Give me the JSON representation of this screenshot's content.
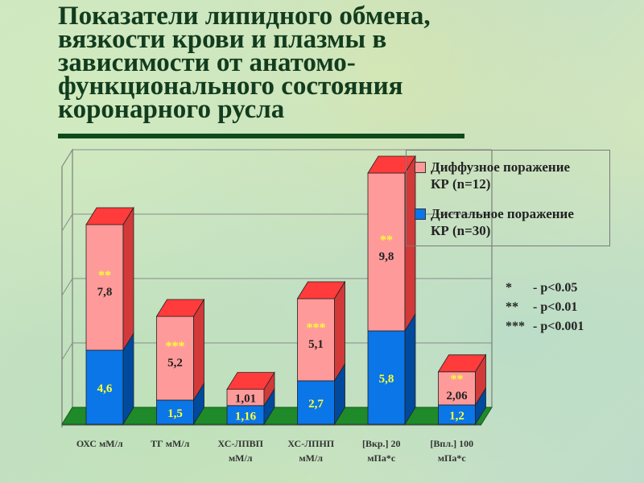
{
  "title_lines": [
    "Показатели липидного обмена,",
    "вязкости крови и плазмы в",
    "зависимости от анатомо-",
    "функционального состояния",
    "коронарного русла"
  ],
  "colors": {
    "diffuse": "#ff9a9a",
    "distal": "#0a76e8",
    "stars": "#ffff33",
    "floor": "#1f8a2a"
  },
  "chart_data": {
    "type": "bar",
    "stacked": true,
    "categories": [
      "ОХС мМ/л",
      "ТГ мМ/л",
      "ХС-ЛПВП мМ/л",
      "ХС-ЛПНП мМ/л",
      "[Вкр.] 20 мПа*с",
      "[Впл.] 100 мПа*с"
    ],
    "category_lines": [
      [
        "ОХС мМ/л"
      ],
      [
        "ТГ мМ/л"
      ],
      [
        "ХС-ЛПВП",
        "мМ/л"
      ],
      [
        "ХС-ЛПНП",
        "мМ/л"
      ],
      [
        "[Вкр.] 20",
        "мПа*с"
      ],
      [
        "[Впл.] 100",
        "мПа*с"
      ]
    ],
    "series": [
      {
        "name": "Дистальное поражение КР (n=30)",
        "values": [
          4.6,
          1.5,
          1.16,
          2.7,
          5.8,
          1.2
        ],
        "labels": [
          "4,6",
          "1,5",
          "1,16",
          "2,7",
          "5,8",
          "1,2"
        ]
      },
      {
        "name": "Диффузное поражение КР (n=12)",
        "values": [
          7.8,
          5.2,
          1.01,
          5.1,
          9.8,
          2.06
        ],
        "labels": [
          "7,8",
          "5,2",
          "1,01",
          "5,1",
          "9,8",
          "2,06"
        ],
        "significance": [
          "**",
          "***",
          "",
          "***",
          "**",
          "**"
        ]
      }
    ],
    "legend": [
      "Диффузное поражение КР (n=12)",
      "Дистальное поражение КР (n=30)"
    ],
    "legend_position": "top-right",
    "grid": true
  },
  "legend_lines": [
    [
      "Диффузное поражение",
      "КР (n=12)"
    ],
    [
      "Дистальное поражение",
      "КР (n=30)"
    ]
  ],
  "significance_notes": [
    {
      "stars": "*",
      "text": "- p<0.05"
    },
    {
      "stars": "**",
      "text": "- p<0.01"
    },
    {
      "stars": "***",
      "text": "- p<0.001"
    }
  ]
}
